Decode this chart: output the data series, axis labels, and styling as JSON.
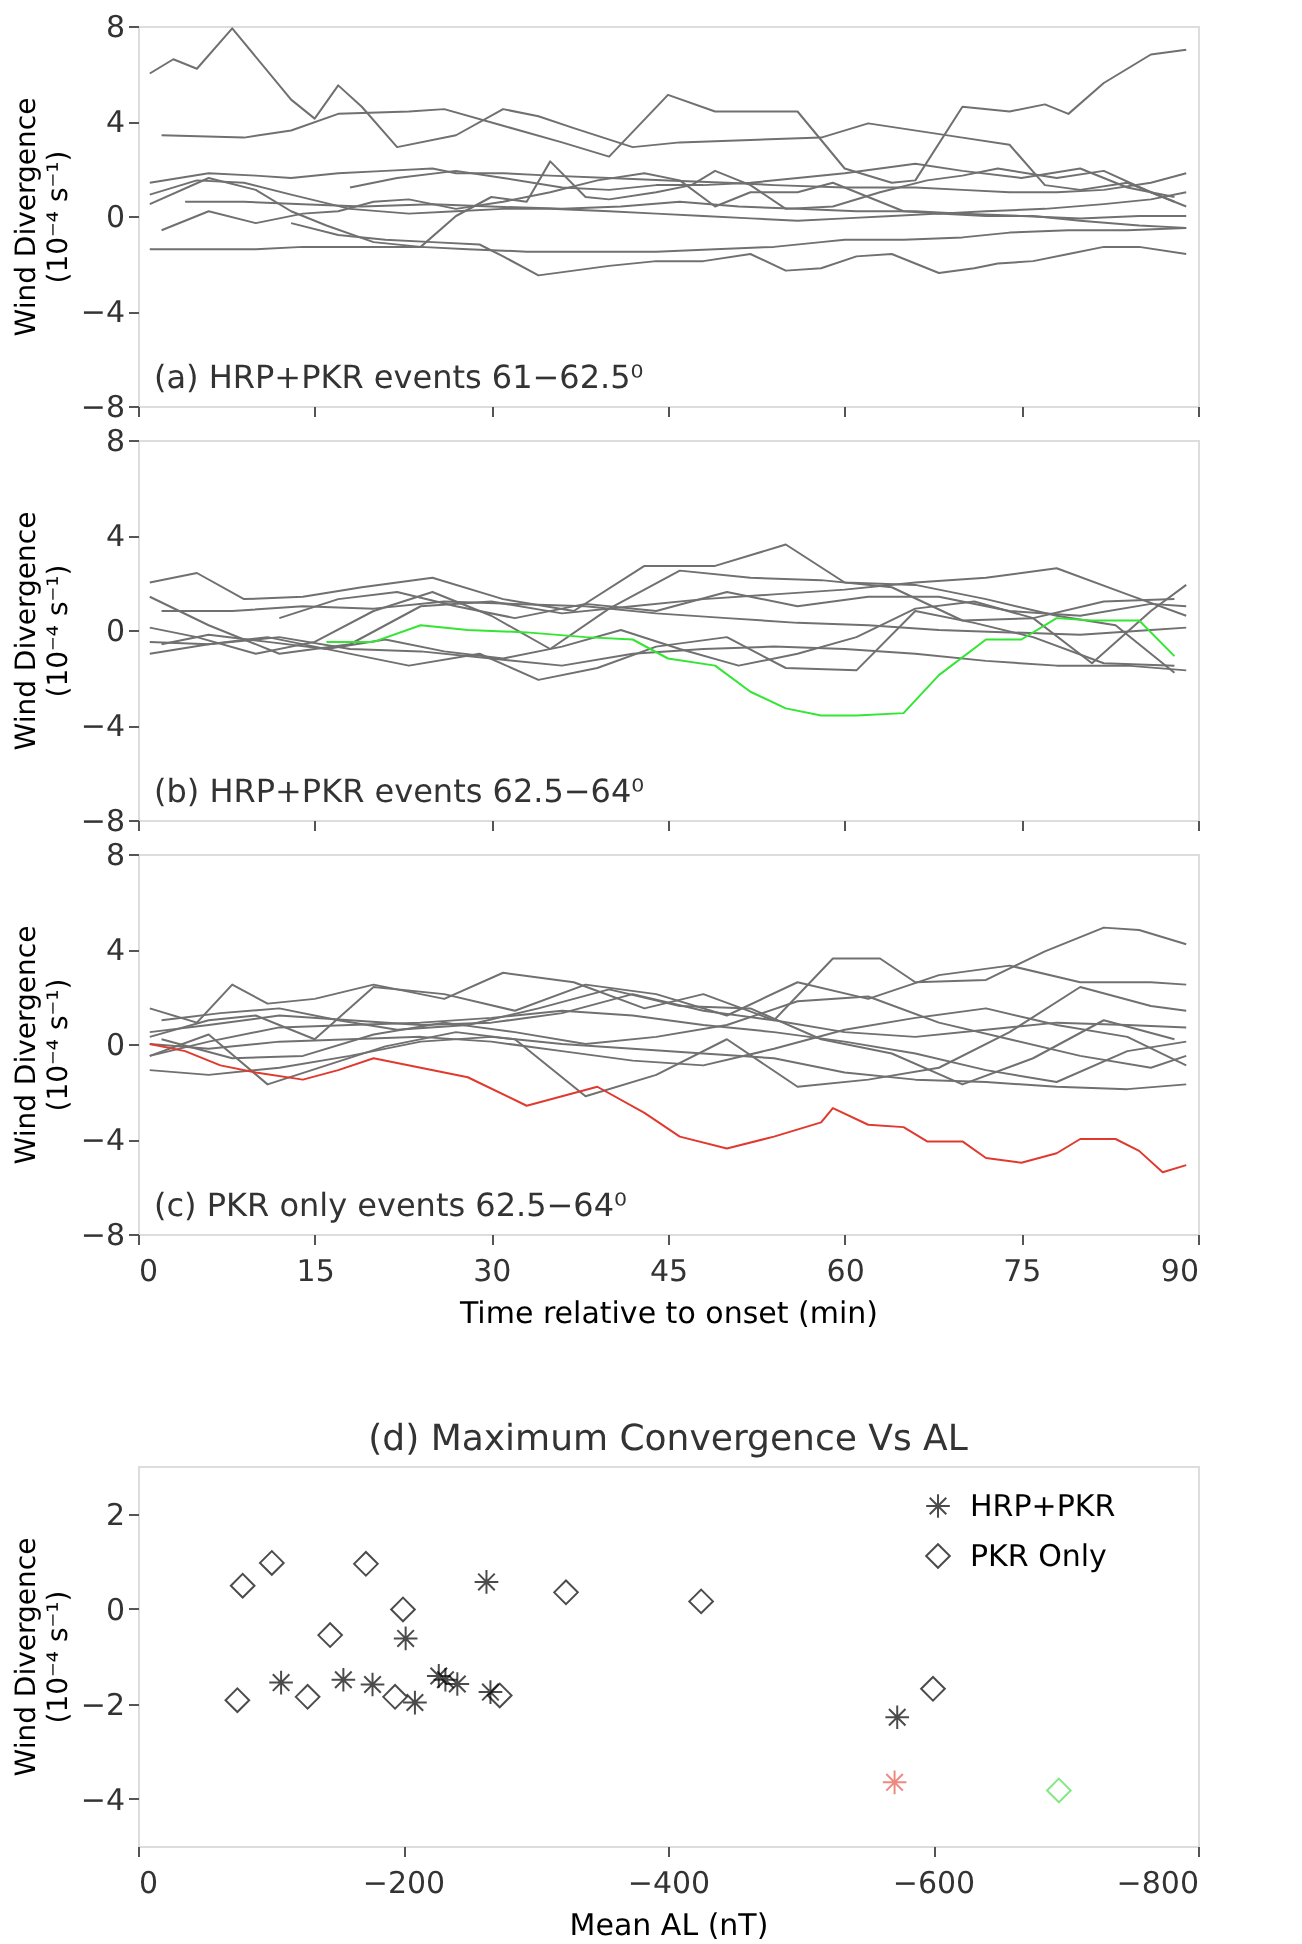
{
  "chart_data": [
    {
      "type": "line",
      "ylabel": "Wind Divergence\n(10⁻⁴ s⁻¹)",
      "annotations": [
        "(a) HRP+PKR events 61−62.5⁰"
      ],
      "xlim": [
        0,
        90
      ],
      "xticks": [
        0,
        15,
        30,
        45,
        60,
        75,
        90
      ],
      "ylim": [
        -8,
        8
      ],
      "yticks": [
        -8,
        -4,
        0,
        4,
        8
      ],
      "tick_labels": "y",
      "grid": false,
      "series": [
        {
          "color": "#707070",
          "x": [
            1,
            3,
            5,
            8,
            13,
            15,
            17,
            19,
            22,
            27,
            31,
            34,
            37,
            42,
            46,
            52,
            58,
            62,
            70,
            74,
            77,
            80,
            84,
            88
          ],
          "values": [
            6,
            6.6,
            6.2,
            7.9,
            4.9,
            4.1,
            5.5,
            4.6,
            2.9,
            3.4,
            4.5,
            4.2,
            3.7,
            2.9,
            3.1,
            3.2,
            3.3,
            3.9,
            3.3,
            3.0,
            1.3,
            1.1,
            1.4,
            0.6
          ]
        },
        {
          "color": "#707070",
          "x": [
            2,
            9,
            13,
            17,
            23,
            26,
            31,
            36,
            40,
            45,
            49,
            56,
            60,
            64,
            66,
            70,
            74,
            77,
            79,
            82,
            86,
            89
          ],
          "values": [
            3.4,
            3.3,
            3.6,
            4.3,
            4.4,
            4.5,
            3.8,
            3.1,
            2.5,
            5.1,
            4.4,
            4.4,
            2.0,
            1.4,
            1.5,
            4.6,
            4.4,
            4.7,
            4.3,
            5.6,
            6.8,
            7.0
          ]
        },
        {
          "color": "#707070",
          "x": [
            1,
            6,
            10,
            13,
            17,
            21,
            25,
            27,
            31,
            35,
            40,
            45,
            50,
            54,
            60,
            66,
            70,
            74,
            78,
            82,
            86,
            89
          ],
          "values": [
            1.4,
            1.8,
            1.7,
            1.6,
            1.8,
            1.9,
            2.0,
            1.8,
            1.8,
            1.7,
            1.6,
            1.5,
            1.4,
            1.3,
            1.2,
            1.2,
            1.1,
            1.0,
            1.0,
            1.1,
            1.4,
            1.8
          ]
        },
        {
          "color": "#707070",
          "x": [
            1,
            6,
            10,
            13,
            16,
            20,
            24,
            27,
            30,
            33,
            35,
            38,
            40,
            44,
            47,
            49,
            52,
            55,
            59,
            63,
            67,
            70,
            73,
            78,
            82,
            86,
            89
          ],
          "values": [
            0.5,
            1.6,
            1.1,
            0.2,
            -0.4,
            -1.1,
            -1.3,
            0,
            0.8,
            0.6,
            2.3,
            0.8,
            0.7,
            1.0,
            1.3,
            1.9,
            1.3,
            0.3,
            0.4,
            1.0,
            1.5,
            1.7,
            2.0,
            1.6,
            1.9,
            1.0,
            0.4
          ]
        },
        {
          "color": "#707070",
          "x": [
            1,
            5,
            10,
            14,
            19,
            24,
            28,
            33,
            38,
            44,
            49,
            54,
            58,
            60,
            65,
            70,
            74,
            79,
            84,
            89
          ],
          "values": [
            -1.4,
            -1.4,
            -1.4,
            -1.3,
            -1.3,
            -1.3,
            -1.4,
            -1.5,
            -1.5,
            -1.5,
            -1.4,
            -1.3,
            -1.1,
            -1.0,
            -1.0,
            -0.9,
            -0.7,
            -0.6,
            -0.6,
            -0.5
          ]
        },
        {
          "color": "#707070",
          "x": [
            2,
            6,
            10,
            14,
            17,
            20,
            23,
            27,
            31,
            35,
            39,
            43,
            46,
            49,
            52,
            56,
            59,
            62,
            65,
            68,
            72,
            77,
            82,
            86,
            89
          ],
          "values": [
            -0.6,
            0.2,
            -0.3,
            0.1,
            0.2,
            0.6,
            0.7,
            0.3,
            0.6,
            1.0,
            1.5,
            1.8,
            1.5,
            0.4,
            1.0,
            1.0,
            1.4,
            0.8,
            0.2,
            0.1,
            0.2,
            0.3,
            0.5,
            0.7,
            1.0
          ]
        },
        {
          "color": "#707070",
          "x": [
            1,
            5,
            9,
            13,
            18,
            23,
            27,
            31,
            35,
            40,
            44,
            48,
            52,
            56,
            60,
            64,
            68,
            72,
            76,
            80,
            85,
            89
          ],
          "values": [
            0.9,
            1.5,
            1.4,
            0.9,
            0.3,
            0.1,
            0.2,
            0.3,
            0.3,
            0.2,
            0.1,
            0.0,
            -0.1,
            -0.2,
            -0.1,
            0.0,
            0.1,
            0.0,
            0.0,
            -0.2,
            -0.4,
            -0.5
          ]
        },
        {
          "color": "#707070",
          "x": [
            4,
            9,
            14,
            19,
            25,
            30,
            36,
            41,
            46,
            51,
            56,
            61,
            66,
            70,
            75,
            80,
            85,
            89
          ],
          "values": [
            0.6,
            0.6,
            0.5,
            0.4,
            0.5,
            0.4,
            0.3,
            0.4,
            0.6,
            0.4,
            0.3,
            0.2,
            0.2,
            0.1,
            0.0,
            -0.1,
            0.0,
            0.0
          ]
        },
        {
          "color": "#707070",
          "x": [
            13,
            17,
            21,
            25,
            29,
            31,
            34,
            40,
            44,
            48,
            52,
            55,
            58,
            61,
            64,
            66,
            68,
            71,
            73,
            76,
            79,
            82,
            85,
            89
          ],
          "values": [
            -0.3,
            -0.8,
            -1.0,
            -1.1,
            -1.2,
            -1.7,
            -2.5,
            -2.1,
            -1.9,
            -1.9,
            -1.6,
            -2.3,
            -2.2,
            -1.7,
            -1.6,
            -2.0,
            -2.4,
            -2.2,
            -2.0,
            -1.9,
            -1.6,
            -1.3,
            -1.3,
            -1.6
          ]
        },
        {
          "color": "#707070",
          "x": [
            18,
            22,
            27,
            31,
            36,
            40,
            44,
            48,
            52,
            56,
            60,
            66,
            70,
            75,
            80,
            84,
            88
          ],
          "values": [
            1.2,
            1.6,
            1.9,
            1.6,
            1.2,
            1.1,
            1.3,
            1.3,
            1.4,
            1.6,
            1.8,
            2.2,
            1.9,
            1.6,
            2.0,
            1.2,
            0.8
          ]
        }
      ]
    },
    {
      "type": "line",
      "ylabel": "Wind Divergence\n(10⁻⁴ s⁻¹)",
      "annotations": [
        "(b) HRP+PKR events 62.5−64⁰"
      ],
      "xlim": [
        0,
        90
      ],
      "xticks": [
        0,
        15,
        30,
        45,
        60,
        75,
        90
      ],
      "ylim": [
        -8,
        8
      ],
      "yticks": [
        -8,
        -4,
        0,
        4,
        8
      ],
      "tick_labels": "y",
      "grid": false,
      "series": [
        {
          "color": "#707070",
          "x": [
            1,
            5,
            9,
            14,
            19,
            25,
            31,
            37,
            43,
            49,
            55,
            60,
            66,
            72,
            78,
            83,
            88
          ],
          "values": [
            2.0,
            2.4,
            1.3,
            1.4,
            1.8,
            2.2,
            1.3,
            0.8,
            2.7,
            2.7,
            3.6,
            2.0,
            1.9,
            1.3,
            0.6,
            0.2,
            -1.8
          ]
        },
        {
          "color": "#707070",
          "x": [
            1,
            6,
            12,
            18,
            24,
            30,
            36,
            42,
            48,
            54,
            60,
            66,
            72,
            78,
            84,
            89
          ],
          "values": [
            1.4,
            0.2,
            -1.0,
            -0.6,
            1.0,
            1.2,
            0.7,
            1.0,
            1.3,
            1.5,
            1.7,
            2.0,
            2.2,
            2.6,
            1.5,
            0.6
          ]
        },
        {
          "color": "#707070",
          "x": [
            1,
            5,
            10,
            15,
            20,
            25,
            30,
            35,
            40,
            46,
            52,
            58,
            64,
            70,
            76,
            82,
            88
          ],
          "values": [
            0.1,
            -0.3,
            -1.0,
            -0.5,
            0.8,
            1.6,
            0.6,
            -0.8,
            0.9,
            2.5,
            2.2,
            2.1,
            1.8,
            0.4,
            0.5,
            1.2,
            1.3
          ]
        },
        {
          "color": "#707070",
          "x": [
            1,
            6,
            11,
            17,
            23,
            29,
            34,
            39,
            44,
            50,
            55,
            61,
            66,
            71,
            76,
            82,
            88
          ],
          "values": [
            -1.0,
            -0.6,
            -0.3,
            -0.9,
            -1.5,
            -1.0,
            -2.1,
            -1.6,
            -0.7,
            -0.3,
            -1.6,
            -1.7,
            0.8,
            0.3,
            -0.3,
            -1.4,
            -1.5
          ]
        },
        {
          "color": "#707070",
          "x": [
            1,
            6,
            12,
            18,
            24,
            30,
            36,
            42,
            48,
            54,
            60,
            66,
            72,
            78,
            84,
            89
          ],
          "values": [
            -0.5,
            -0.6,
            -0.3,
            -0.8,
            -0.9,
            -1.2,
            -1.5,
            -1.0,
            -0.8,
            -0.7,
            -0.8,
            -1.0,
            -1.3,
            -1.5,
            -1.5,
            -1.7
          ]
        },
        {
          "color": "#707070",
          "x": [
            2,
            8,
            14,
            20,
            26,
            32,
            38,
            44,
            50,
            56,
            62,
            68,
            74,
            80,
            86,
            89
          ],
          "values": [
            0.8,
            0.8,
            1.0,
            0.9,
            1.2,
            1.1,
            1.0,
            0.7,
            0.5,
            0.3,
            0.2,
            0.0,
            -0.1,
            -0.2,
            0.0,
            0.1
          ]
        },
        {
          "color": "#707070",
          "x": [
            2,
            6,
            11,
            16,
            21,
            26,
            31,
            36,
            41,
            46,
            51,
            56,
            61,
            66,
            71,
            76,
            81,
            86,
            89
          ],
          "values": [
            -0.6,
            -0.2,
            -0.5,
            -0.8,
            -0.4,
            -0.9,
            -1.2,
            -0.7,
            0.0,
            -0.8,
            -1.5,
            -1.0,
            -0.3,
            0.9,
            1.2,
            0.5,
            -1.4,
            0.8,
            1.9
          ]
        },
        {
          "color": "#707070",
          "x": [
            12,
            17,
            22,
            27,
            32,
            38,
            44,
            50,
            56,
            62,
            68,
            74,
            80,
            86,
            89
          ],
          "values": [
            0.5,
            1.3,
            1.6,
            1.0,
            0.5,
            1.1,
            0.8,
            1.6,
            1.0,
            1.4,
            1.4,
            0.8,
            0.6,
            1.1,
            1.0
          ]
        },
        {
          "color": "#33e633",
          "x": [
            16,
            20,
            24,
            28,
            33,
            38,
            42,
            45,
            49,
            52,
            55,
            58,
            61,
            65,
            68,
            72,
            75,
            78,
            81,
            85,
            88
          ],
          "values": [
            -0.5,
            -0.5,
            0.2,
            0,
            -0.1,
            -0.3,
            -0.4,
            -1.2,
            -1.5,
            -2.6,
            -3.3,
            -3.6,
            -3.6,
            -3.5,
            -1.9,
            -0.4,
            -0.4,
            0.5,
            0.4,
            0.4,
            -1.1
          ]
        }
      ]
    },
    {
      "type": "line",
      "ylabel": "Wind Divergence\n(10⁻⁴ s⁻¹)",
      "xlabel": "Time relative to onset (min)",
      "annotations": [
        "(c) PKR only events 62.5−64⁰"
      ],
      "xlim": [
        0,
        90
      ],
      "xticks": [
        0,
        15,
        30,
        45,
        60,
        75,
        90
      ],
      "ylim": [
        -8,
        8
      ],
      "yticks": [
        -8,
        -4,
        0,
        4,
        8
      ],
      "grid": false,
      "series": [
        {
          "color": "#707070",
          "x": [
            1,
            5,
            8,
            11,
            15,
            20,
            26,
            31,
            37,
            43,
            48,
            54,
            59,
            63,
            66,
            72,
            77,
            82,
            85,
            89
          ],
          "values": [
            1.5,
            0.9,
            2.5,
            1.7,
            1.9,
            2.5,
            1.9,
            3.0,
            2.6,
            1.5,
            2.1,
            1.0,
            3.6,
            3.6,
            2.6,
            2.7,
            3.9,
            4.9,
            4.8,
            4.2
          ]
        },
        {
          "color": "#707070",
          "x": [
            1,
            6,
            10,
            15,
            20,
            26,
            32,
            38,
            44,
            50,
            56,
            62,
            68,
            74,
            80,
            86,
            89
          ],
          "values": [
            0.3,
            1.0,
            1.2,
            0.2,
            2.4,
            2.1,
            1.4,
            2.5,
            2.1,
            1.2,
            2.6,
            1.9,
            2.9,
            3.3,
            2.6,
            2.6,
            2.5
          ]
        },
        {
          "color": "#707070",
          "x": [
            1,
            6,
            11,
            16,
            21,
            27,
            32,
            38,
            44,
            50,
            56,
            62,
            68,
            74,
            80,
            86,
            89
          ],
          "values": [
            -0.5,
            0.4,
            -1.7,
            -0.9,
            -0.1,
            0.5,
            0.2,
            -2.2,
            -1.3,
            0.2,
            -1.8,
            -1.5,
            -1.0,
            0.5,
            2.4,
            1.6,
            1.4
          ]
        },
        {
          "color": "#707070",
          "x": [
            1,
            6,
            12,
            18,
            24,
            30,
            36,
            42,
            48,
            54,
            60,
            66,
            72,
            78,
            84,
            89
          ],
          "values": [
            -1.1,
            -1.3,
            -1.0,
            -0.5,
            0.1,
            0.3,
            0.0,
            -0.2,
            -0.4,
            -0.6,
            -1.2,
            -1.5,
            -1.6,
            -1.8,
            -1.9,
            -1.7
          ]
        },
        {
          "color": "#707070",
          "x": [
            1,
            6,
            12,
            18,
            24,
            30,
            36,
            42,
            48,
            54,
            60,
            66,
            72,
            78,
            84,
            89
          ],
          "values": [
            0.5,
            0.8,
            1.2,
            1.0,
            0.8,
            0.9,
            1.3,
            2.1,
            1.4,
            1.0,
            0.5,
            0.3,
            0.6,
            0.9,
            0.8,
            0.7
          ]
        },
        {
          "color": "#707070",
          "x": [
            1,
            6,
            12,
            18,
            24,
            30,
            36,
            42,
            48,
            54,
            60,
            66,
            72,
            78,
            84,
            89
          ],
          "values": [
            0.0,
            -0.2,
            0.1,
            0.2,
            0.3,
            0.1,
            -0.3,
            -0.7,
            -0.9,
            -0.2,
            0.6,
            1.1,
            1.5,
            0.8,
            0.3,
            -0.9
          ]
        },
        {
          "color": "#707070",
          "x": [
            2,
            7,
            12,
            17,
            22,
            28,
            34,
            40,
            46,
            52,
            58,
            64,
            70,
            76,
            82,
            88
          ],
          "values": [
            1.0,
            1.3,
            1.5,
            1.0,
            0.6,
            0.8,
            1.5,
            2.3,
            1.6,
            1.5,
            0.2,
            -0.4,
            -1.7,
            -0.6,
            1.0,
            0.2
          ]
        },
        {
          "color": "#707070",
          "x": [
            2,
            8,
            14,
            20,
            26,
            32,
            38,
            44,
            50,
            56,
            62,
            68,
            74,
            80,
            86,
            89
          ],
          "values": [
            0.2,
            -0.6,
            -0.5,
            0.4,
            0.9,
            0.5,
            0.0,
            0.3,
            0.8,
            1.8,
            2.0,
            0.9,
            0.2,
            -0.5,
            -1.0,
            -0.5
          ]
        },
        {
          "color": "#707070",
          "x": [
            1,
            6,
            12,
            18,
            24,
            30,
            36,
            42,
            48,
            54,
            60,
            66,
            72,
            78,
            84,
            89
          ],
          "values": [
            -0.5,
            0.1,
            0.7,
            0.8,
            0.9,
            1.1,
            1.4,
            1.2,
            0.8,
            0.5,
            0.1,
            -0.4,
            -1.1,
            -1.6,
            -0.3,
            0.1
          ]
        },
        {
          "color": "#e03a2e",
          "x": [
            1,
            4,
            7,
            10,
            14,
            17,
            20,
            24,
            28,
            33,
            39,
            43,
            46,
            50,
            54,
            58,
            59,
            62,
            65,
            67,
            70,
            72,
            75,
            78,
            80,
            83,
            85,
            87,
            89
          ],
          "values": [
            0,
            -0.3,
            -0.9,
            -1.2,
            -1.5,
            -1.1,
            -0.6,
            -1.0,
            -1.4,
            -2.6,
            -1.8,
            -2.9,
            -3.9,
            -4.4,
            -3.9,
            -3.3,
            -2.7,
            -3.4,
            -3.5,
            -4.1,
            -4.1,
            -4.8,
            -5.0,
            -4.6,
            -4.0,
            -4.0,
            -4.5,
            -5.4,
            -5.1
          ]
        }
      ]
    },
    {
      "type": "scatter",
      "title": "(d) Maximum Convergence Vs AL",
      "xlabel": "Mean AL (nT)",
      "ylabel": "Wind Divergence\n(10⁻⁴ s⁻¹)",
      "xlim": [
        0,
        -800
      ],
      "xticks": [
        0,
        -200,
        -400,
        -600,
        -800
      ],
      "ylim": [
        -5,
        3
      ],
      "yticks": [
        -4,
        -2,
        0,
        2
      ],
      "grid": false,
      "legend": "top right",
      "series": [
        {
          "name": "HRP+PKR",
          "marker": "cross",
          "color": "#000000",
          "x": [
            -108,
            -155,
            -177,
            -202,
            -209,
            -227,
            -232,
            -241,
            -263,
            -266,
            -573,
            -571
          ],
          "values": [
            -1.56,
            -1.5,
            -1.6,
            -0.63,
            -1.98,
            -1.42,
            -1.5,
            -1.59,
            0.56,
            -1.76,
            -2.29,
            -3.66
          ],
          "colors": [
            "#000000",
            "#000000",
            "#000000",
            "#000000",
            "#000000",
            "#000000",
            "#000000",
            "#000000",
            "#000000",
            "#000000",
            "#000000",
            "#e8584a"
          ]
        },
        {
          "name": "PKR Only",
          "marker": "diamond",
          "color": "#000000",
          "x": [
            -79,
            -101,
            -172,
            -200,
            -145,
            -75,
            -128,
            -194,
            -273,
            -323,
            -425,
            -600,
            -695
          ],
          "values": [
            0.48,
            0.96,
            0.94,
            -0.02,
            -0.56,
            -1.93,
            -1.86,
            -1.86,
            -1.83,
            0.34,
            0.15,
            -1.69,
            -3.83
          ],
          "colors": [
            "#000000",
            "#000000",
            "#000000",
            "#000000",
            "#000000",
            "#000000",
            "#000000",
            "#000000",
            "#000000",
            "#000000",
            "#000000",
            "#000000",
            "#55dd55"
          ]
        }
      ]
    }
  ]
}
